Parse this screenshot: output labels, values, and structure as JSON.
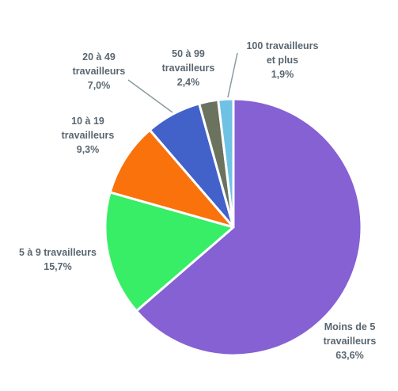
{
  "chart_data": {
    "type": "pie",
    "title": "",
    "slices": [
      {
        "label_lines": [
          "Moins de 5",
          "travailleurs"
        ],
        "value_label": "63,6%",
        "value": 63.6,
        "color": "#8561d3"
      },
      {
        "label_lines": [
          "5 à 9 travailleurs"
        ],
        "value_label": "15,7%",
        "value": 15.7,
        "color": "#38ee66"
      },
      {
        "label_lines": [
          "10 à 19",
          "travailleurs"
        ],
        "value_label": "9,3%",
        "value": 9.3,
        "color": "#fa720c"
      },
      {
        "label_lines": [
          "20 à 49",
          "travailleurs"
        ],
        "value_label": "7,0%",
        "value": 7.0,
        "color": "#4262c9"
      },
      {
        "label_lines": [
          "50 à 99",
          "travailleurs"
        ],
        "value_label": "2,4%",
        "value": 2.4,
        "color": "#6b735f"
      },
      {
        "label_lines": [
          "100 travailleurs",
          "et plus"
        ],
        "value_label": "1,9%",
        "value": 1.9,
        "color": "#6fc2e4"
      }
    ],
    "start": "12 o'clock",
    "direction": "clockwise",
    "legend": "none"
  }
}
